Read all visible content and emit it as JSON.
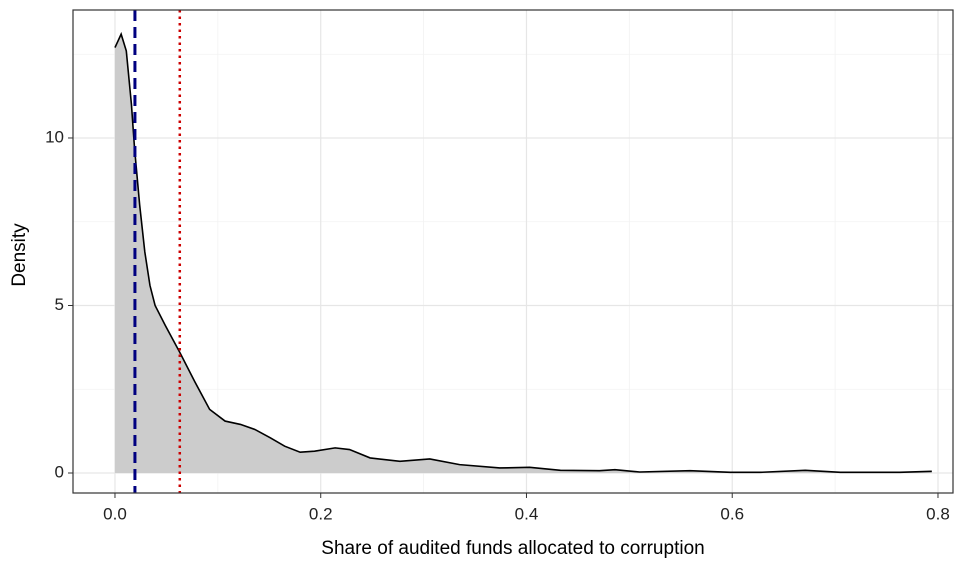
{
  "chart_data": {
    "type": "density",
    "x_label": "Share of audited funds allocated to corruption",
    "y_label": "Density",
    "x": [
      0.0,
      0.006,
      0.011,
      0.016,
      0.019,
      0.024,
      0.029,
      0.034,
      0.039,
      0.049,
      0.063,
      0.078,
      0.092,
      0.107,
      0.122,
      0.136,
      0.151,
      0.165,
      0.18,
      0.194,
      0.214,
      0.228,
      0.248,
      0.277,
      0.306,
      0.335,
      0.374,
      0.403,
      0.433,
      0.471,
      0.486,
      0.51,
      0.559,
      0.598,
      0.627,
      0.671,
      0.705,
      0.763,
      0.794
    ],
    "values": [
      12.7,
      13.1,
      12.6,
      11.0,
      9.7,
      8.0,
      6.6,
      5.6,
      5.0,
      4.4,
      3.6,
      2.7,
      1.9,
      1.55,
      1.45,
      1.3,
      1.05,
      0.8,
      0.62,
      0.65,
      0.75,
      0.7,
      0.45,
      0.35,
      0.42,
      0.25,
      0.15,
      0.17,
      0.08,
      0.07,
      0.1,
      0.03,
      0.07,
      0.02,
      0.02,
      0.08,
      0.02,
      0.02,
      0.05
    ],
    "fill": "#cccccc",
    "line_color": "#000000",
    "xlim": [
      -0.0408,
      0.8146
    ],
    "ylim": [
      -0.597,
      13.82
    ],
    "xticks": [
      {
        "value": 0,
        "label": "0.0"
      },
      0.2,
      0.4,
      0.6,
      0.8
    ],
    "yticks": [
      0,
      5,
      10
    ],
    "x_minor_ticks": [
      0.1,
      0.3,
      0.5,
      0.7
    ],
    "y_minor_ticks": [
      2.5,
      7.5,
      12.5
    ],
    "grid": true,
    "reference_lines": [
      {
        "x": 0.0194,
        "color": "#000080",
        "style": "dashed"
      },
      {
        "x": 0.063,
        "color": "#cc0000",
        "style": "dotted"
      }
    ]
  }
}
